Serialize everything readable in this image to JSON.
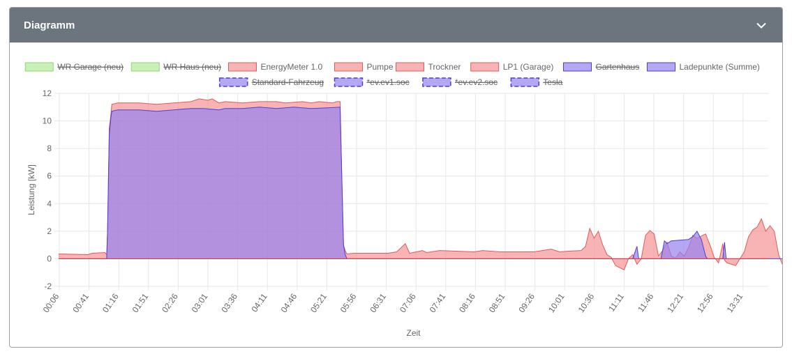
{
  "card": {
    "title": "Diagramm",
    "collapse_icon": "chevron-down-icon"
  },
  "colors": {
    "header_bg": "#6c757d",
    "green": "#9be37f",
    "red": "#f5a3a3",
    "blue": "#a99af0",
    "purple": "#c57db4"
  },
  "chart_data": {
    "type": "area",
    "xlabel": "Zeit",
    "ylabel": "Leistung [kW]",
    "ylim": [
      -2,
      12
    ],
    "yticks": [
      -2,
      0,
      2,
      4,
      6,
      8,
      10,
      12
    ],
    "xticks": [
      "00:06",
      "00:41",
      "01:16",
      "01:51",
      "02:26",
      "03:01",
      "03:36",
      "04:11",
      "04:46",
      "05:21",
      "05:56",
      "06:31",
      "07:06",
      "07:41",
      "08:16",
      "08:51",
      "09:26",
      "10:01",
      "10:36",
      "11:11",
      "11:46",
      "12:21",
      "12:56",
      "13:31"
    ],
    "xrange_minutes": [
      6,
      833
    ],
    "grid": true,
    "legend": [
      {
        "label": "WR Garage (neu)",
        "color": "green",
        "hidden": true,
        "dashed": false
      },
      {
        "label": "WR Haus (neu)",
        "color": "green",
        "hidden": true,
        "dashed": false
      },
      {
        "label": "EnergyMeter 1.0",
        "color": "red",
        "hidden": false,
        "dashed": false
      },
      {
        "label": "Pumpe",
        "color": "red",
        "hidden": false,
        "dashed": false
      },
      {
        "label": "Trockner",
        "color": "red",
        "hidden": false,
        "dashed": false
      },
      {
        "label": "LP1 (Garage)",
        "color": "red",
        "hidden": false,
        "dashed": false
      },
      {
        "label": "Gartenhaus",
        "color": "blue",
        "hidden": true,
        "dashed": false
      },
      {
        "label": "Ladepunkte (Summe)",
        "color": "blue",
        "hidden": false,
        "dashed": false
      },
      {
        "label": "Standard-Fahrzeug",
        "color": "blue",
        "hidden": true,
        "dashed": true
      },
      {
        "label": "*ev.ev1.soc",
        "color": "blue",
        "hidden": true,
        "dashed": true
      },
      {
        "label": "*ev.ev2.soc",
        "color": "blue",
        "hidden": true,
        "dashed": true
      },
      {
        "label": "Tesla",
        "color": "blue",
        "hidden": true,
        "dashed": true
      }
    ],
    "series": [
      {
        "name": "EnergyMeter 1.0",
        "color": "red",
        "points": [
          [
            6,
            0.35
          ],
          [
            40,
            0.3
          ],
          [
            45,
            0.4
          ],
          [
            60,
            0.45
          ],
          [
            62,
            0.3
          ],
          [
            63,
            2
          ],
          [
            65,
            9.5
          ],
          [
            67,
            10.5
          ],
          [
            68,
            11.2
          ],
          [
            75,
            11.3
          ],
          [
            100,
            11.3
          ],
          [
            120,
            11.2
          ],
          [
            140,
            11.3
          ],
          [
            160,
            11.4
          ],
          [
            170,
            11.6
          ],
          [
            180,
            11.5
          ],
          [
            185,
            11.6
          ],
          [
            193,
            11.3
          ],
          [
            200,
            11.4
          ],
          [
            220,
            11.3
          ],
          [
            240,
            11.4
          ],
          [
            260,
            11.4
          ],
          [
            270,
            11.3
          ],
          [
            290,
            11.4
          ],
          [
            300,
            11.3
          ],
          [
            310,
            11.4
          ],
          [
            325,
            11.3
          ],
          [
            330,
            11.4
          ],
          [
            334,
            11.4
          ],
          [
            336,
            6
          ],
          [
            338,
            1.0
          ],
          [
            340,
            0.6
          ],
          [
            342,
            0.35
          ],
          [
            350,
            0.4
          ],
          [
            390,
            0.4
          ],
          [
            400,
            0.5
          ],
          [
            410,
            1.1
          ],
          [
            415,
            0.4
          ],
          [
            430,
            0.6
          ],
          [
            435,
            0.45
          ],
          [
            450,
            0.6
          ],
          [
            490,
            0.5
          ],
          [
            500,
            0.6
          ],
          [
            520,
            0.5
          ],
          [
            560,
            0.5
          ],
          [
            580,
            0.7
          ],
          [
            590,
            0.5
          ],
          [
            600,
            0.55
          ],
          [
            615,
            0.6
          ],
          [
            620,
            0.9
          ],
          [
            625,
            2.2
          ],
          [
            630,
            1.5
          ],
          [
            635,
            2.0
          ],
          [
            640,
            1.0
          ],
          [
            645,
            0.3
          ],
          [
            650,
            0.1
          ],
          [
            655,
            -0.5
          ],
          [
            665,
            -0.8
          ],
          [
            670,
            0.0
          ],
          [
            675,
            0.3
          ],
          [
            680,
            -0.4
          ],
          [
            685,
            0.0
          ],
          [
            690,
            1.7
          ],
          [
            695,
            2.05
          ],
          [
            700,
            1.8
          ],
          [
            705,
            0.2
          ],
          [
            710,
            0.6
          ],
          [
            715,
            1.2
          ],
          [
            720,
            0.2
          ],
          [
            725,
            0.05
          ],
          [
            730,
            0.5
          ],
          [
            735,
            0.2
          ],
          [
            740,
            0.8
          ],
          [
            745,
            1.7
          ],
          [
            750,
            1.5
          ],
          [
            760,
            1.8
          ],
          [
            765,
            1.0
          ],
          [
            770,
            0.1
          ],
          [
            775,
            -0.3
          ],
          [
            780,
            1.1
          ],
          [
            782,
            -0.1
          ],
          [
            785,
            -0.3
          ],
          [
            795,
            -0.5
          ],
          [
            800,
            0.0
          ],
          [
            805,
            0.5
          ],
          [
            810,
            1.6
          ],
          [
            815,
            2.1
          ],
          [
            820,
            2.3
          ],
          [
            825,
            2.9
          ],
          [
            830,
            2.0
          ],
          [
            835,
            2.4
          ],
          [
            840,
            2.0
          ],
          [
            845,
            0.3
          ],
          [
            850,
            -0.5
          ],
          [
            860,
            -1.0
          ],
          [
            865,
            0.0
          ],
          [
            868,
            0.8
          ]
        ]
      },
      {
        "name": "Ladepunkte (Summe)",
        "color": "blue",
        "points": [
          [
            6,
            0
          ],
          [
            62,
            0
          ],
          [
            63,
            2
          ],
          [
            65,
            9.0
          ],
          [
            67,
            10.3
          ],
          [
            68,
            10.7
          ],
          [
            75,
            10.8
          ],
          [
            100,
            10.8
          ],
          [
            120,
            10.7
          ],
          [
            140,
            10.8
          ],
          [
            160,
            10.9
          ],
          [
            175,
            10.9
          ],
          [
            193,
            10.8
          ],
          [
            200,
            10.9
          ],
          [
            220,
            10.9
          ],
          [
            240,
            11.0
          ],
          [
            260,
            10.9
          ],
          [
            280,
            11.0
          ],
          [
            300,
            10.9
          ],
          [
            320,
            10.95
          ],
          [
            334,
            11.0
          ],
          [
            336,
            6
          ],
          [
            338,
            1.0
          ],
          [
            340,
            0.3
          ],
          [
            342,
            0
          ],
          [
            675,
            0
          ],
          [
            680,
            0.9
          ],
          [
            682,
            0
          ],
          [
            708,
            0
          ],
          [
            712,
            1.3
          ],
          [
            715,
            1.1
          ],
          [
            720,
            1.3
          ],
          [
            740,
            1.4
          ],
          [
            745,
            1.6
          ],
          [
            750,
            2.0
          ],
          [
            755,
            1.4
          ],
          [
            760,
            0.2
          ],
          [
            762,
            0
          ],
          [
            780,
            0
          ],
          [
            782,
            1.2
          ],
          [
            784,
            0
          ],
          [
            850,
            0
          ],
          [
            860,
            0.3
          ],
          [
            865,
            0.5
          ],
          [
            868,
            1.4
          ]
        ]
      }
    ]
  }
}
